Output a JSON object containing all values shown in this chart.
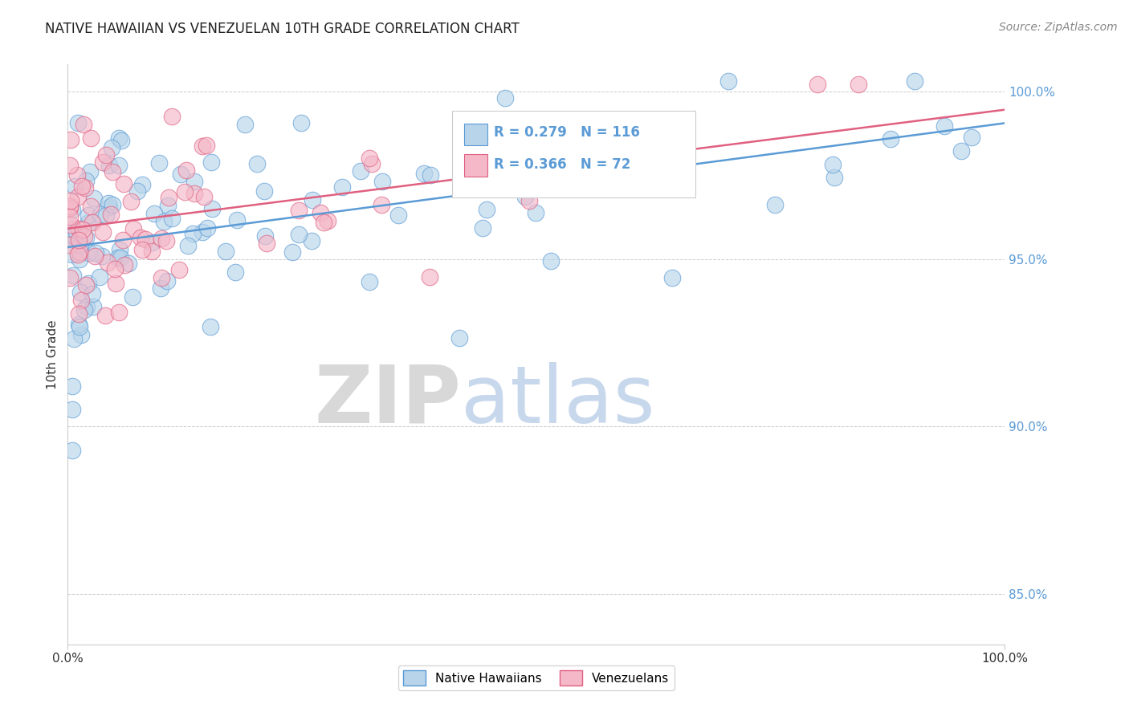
{
  "title": "NATIVE HAWAIIAN VS VENEZUELAN 10TH GRADE CORRELATION CHART",
  "source_text": "Source: ZipAtlas.com",
  "ylabel": "10th Grade",
  "r_blue": 0.279,
  "n_blue": 116,
  "r_pink": 0.366,
  "n_pink": 72,
  "blue_fill": "#b8d4ea",
  "blue_edge": "#5b9bd5",
  "pink_fill": "#f4b8c8",
  "pink_edge": "#e06080",
  "blue_line": "#5b9bd5",
  "pink_line": "#e06080",
  "legend_label_blue": "Native Hawaiians",
  "legend_label_pink": "Venezuelans",
  "xlim": [
    0.0,
    1.0
  ],
  "ylim": [
    0.835,
    1.008
  ],
  "yticks": [
    0.85,
    0.9,
    0.95,
    1.0
  ],
  "ytick_labels": [
    "85.0%",
    "90.0%",
    "95.0%",
    "100.0%"
  ],
  "title_color": "#222222",
  "source_color": "#888888",
  "ytick_color": "#5b9bd5",
  "text_color": "#333333"
}
